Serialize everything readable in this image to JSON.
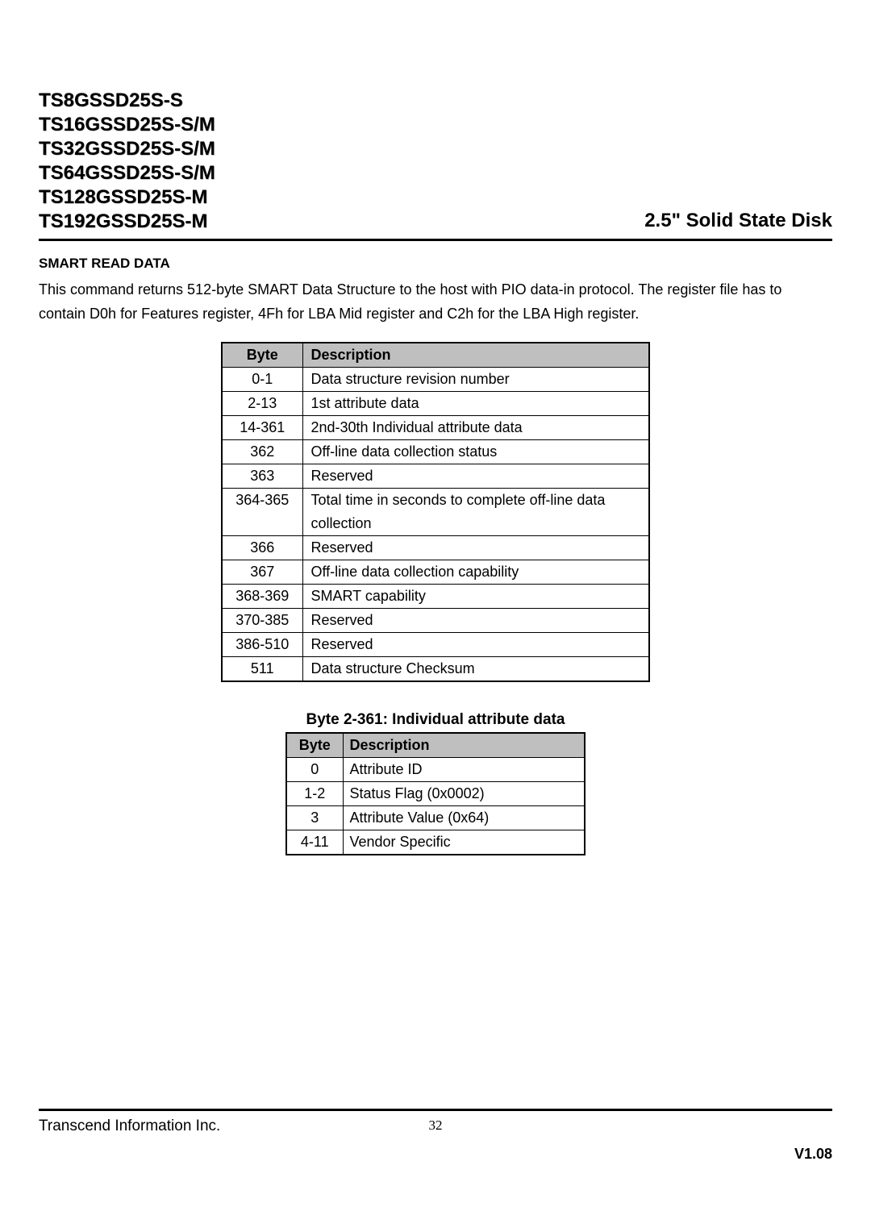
{
  "header": {
    "models": [
      "TS8GSSD25S-S",
      "TS16GSSD25S-S/M",
      "TS32GSSD25S-S/M",
      "TS64GSSD25S-S/M",
      "TS128GSSD25S-M",
      "TS192GSSD25S-M"
    ],
    "product_title": "2.5\" Solid State Disk"
  },
  "section": {
    "title": "SMART READ DATA",
    "body": "This command returns 512-byte SMART Data Structure to the host with PIO data-in protocol. The register file has to contain D0h for Features register, 4Fh for LBA Mid register and C2h for the LBA High register."
  },
  "table1": {
    "headers": [
      "Byte",
      "Description"
    ],
    "rows": [
      {
        "byte": "0-1",
        "desc": "Data structure revision number"
      },
      {
        "byte": "2-13",
        "desc": "1st attribute data"
      },
      {
        "byte": "14-361",
        "desc": "2nd-30th Individual attribute data"
      },
      {
        "byte": "362",
        "desc": "Off-line data collection status"
      },
      {
        "byte": "363",
        "desc": "Reserved"
      },
      {
        "byte": "364-365",
        "desc": "Total time in seconds to complete off-line data"
      },
      {
        "byte": "",
        "desc": "collection"
      },
      {
        "byte": "366",
        "desc": "Reserved"
      },
      {
        "byte": "367",
        "desc": "Off-line data collection capability"
      },
      {
        "byte": "368-369",
        "desc": "SMART capability"
      },
      {
        "byte": "370-385",
        "desc": "Reserved"
      },
      {
        "byte": "386-510",
        "desc": "Reserved"
      },
      {
        "byte": "511",
        "desc": "Data structure Checksum"
      }
    ]
  },
  "table2": {
    "title": "Byte 2-361: Individual attribute data",
    "headers": [
      "Byte",
      "Description"
    ],
    "rows": [
      {
        "byte": "0",
        "desc": "Attribute ID"
      },
      {
        "byte": "1-2",
        "desc": "Status Flag (0x0002)"
      },
      {
        "byte": "3",
        "desc": "Attribute Value (0x64)"
      },
      {
        "byte": "4-11",
        "desc": "Vendor Specific"
      }
    ]
  },
  "footer": {
    "company": "Transcend Information Inc.",
    "page": "32",
    "version": "V1.08"
  },
  "colors": {
    "header_bg": "#bfbfbf",
    "text": "#000000",
    "rule": "#000000"
  }
}
